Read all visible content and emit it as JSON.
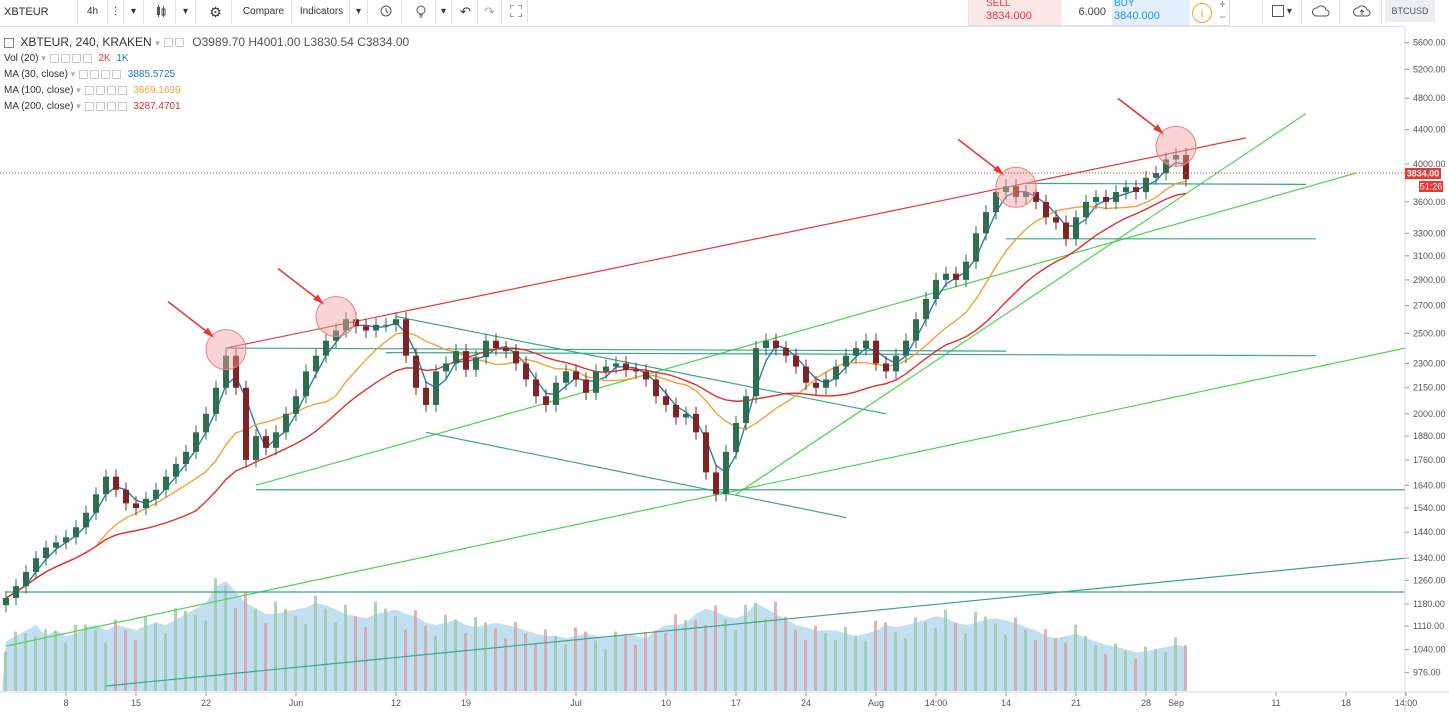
{
  "toolbar": {
    "symbol": "XBTEUR",
    "interval": "4h",
    "compare_label": "Compare",
    "indicators_label": "Indicators",
    "symbol_right": "BTCUSD"
  },
  "trade": {
    "sell_label": "SELL",
    "sell_price": "3834.000",
    "quantity": "6.000",
    "buy_label": "BUY",
    "buy_price": "3840.000"
  },
  "legend": {
    "main": "XBTEUR, 240, KRAKEN",
    "open": "O3989.70",
    "high": "H4001.00",
    "low": "L3830.54",
    "close": "C3834.00",
    "vol_label": "Vol (20)",
    "vol_2k": "2K",
    "vol_1k": "1K",
    "ma30_label": "MA (30, close)",
    "ma30_value": "3885.5725",
    "ma100_label": "MA (100, close)",
    "ma100_value": "3669.1699",
    "ma200_label": "MA (200, close)",
    "ma200_value": "3287.4701"
  },
  "price_tag": {
    "price": "3834.00",
    "countdown": "51:26"
  },
  "colors": {
    "ma30": "#2a7ab8",
    "ma100": "#f2a23a",
    "ma200": "#e0302c",
    "up": "#2f6d4f",
    "down": "#7d2424",
    "volume": "#8fc5e6",
    "resistance": "#e53935",
    "support_green": "#4ed44e",
    "horizontal_teal": "#3aa58a",
    "annotation_arrow": "#e53935"
  },
  "chart_data": {
    "type": "candlestick",
    "title": "XBTEUR, 240, KRAKEN",
    "ylim": [
      940,
      5800
    ],
    "y_scale": "log",
    "price_ticks": [
      5600,
      5200,
      4800,
      4400,
      4000,
      3600,
      3300,
      3100,
      2900,
      2700,
      2500,
      2300,
      2150,
      2000,
      1880,
      1760,
      1640,
      1540,
      1440,
      1340,
      1260,
      1180,
      1110,
      1040,
      976
    ],
    "time_ticks": [
      {
        "label": "8",
        "idx": 6
      },
      {
        "label": "15",
        "idx": 13
      },
      {
        "label": "22",
        "idx": 20
      },
      {
        "label": "Jun",
        "idx": 29
      },
      {
        "label": "12",
        "idx": 39
      },
      {
        "label": "19",
        "idx": 46
      },
      {
        "label": "Jul",
        "idx": 57
      },
      {
        "label": "10",
        "idx": 66
      },
      {
        "label": "17",
        "idx": 73
      },
      {
        "label": "24",
        "idx": 80
      },
      {
        "label": "Aug",
        "idx": 87
      },
      {
        "label": "14:00",
        "idx": 93
      },
      {
        "label": "14",
        "idx": 100
      },
      {
        "label": "21",
        "idx": 107
      },
      {
        "label": "28",
        "idx": 114
      },
      {
        "label": "Sep",
        "idx": 117
      },
      {
        "label": "11",
        "idx": 127
      },
      {
        "label": "18",
        "idx": 134
      },
      {
        "label": "14:00",
        "idx": 140
      }
    ],
    "closes": [
      1200,
      1240,
      1290,
      1340,
      1380,
      1400,
      1420,
      1460,
      1520,
      1600,
      1680,
      1620,
      1560,
      1540,
      1580,
      1620,
      1680,
      1740,
      1800,
      1900,
      2000,
      2150,
      2350,
      2150,
      1760,
      1880,
      1820,
      1900,
      2000,
      2100,
      2250,
      2350,
      2450,
      2520,
      2600,
      2550,
      2520,
      2560,
      2560,
      2600,
      2350,
      2150,
      2050,
      2250,
      2300,
      2380,
      2260,
      2340,
      2450,
      2400,
      2380,
      2300,
      2200,
      2100,
      2050,
      2180,
      2250,
      2200,
      2120,
      2250,
      2280,
      2300,
      2260,
      2250,
      2200,
      2100,
      2050,
      1980,
      2000,
      1900,
      1700,
      1600,
      1800,
      1950,
      2100,
      2400,
      2450,
      2400,
      2350,
      2280,
      2180,
      2150,
      2200,
      2280,
      2350,
      2400,
      2450,
      2300,
      2250,
      2350,
      2450,
      2600,
      2750,
      2900,
      2950,
      2900,
      3050,
      3300,
      3500,
      3700,
      3760,
      3650,
      3700,
      3600,
      3450,
      3400,
      3250,
      3450,
      3600,
      3650,
      3600,
      3700,
      3750,
      3700,
      3850,
      3900,
      4050,
      4100,
      3834
    ],
    "volumes": [
      0.45,
      0.5,
      0.55,
      0.6,
      0.5,
      0.55,
      0.5,
      0.52,
      0.58,
      0.6,
      0.55,
      0.6,
      0.58,
      0.55,
      0.6,
      0.62,
      0.6,
      0.65,
      0.7,
      0.75,
      0.8,
      0.95,
      1.0,
      0.9,
      0.8,
      0.75,
      0.7,
      0.7,
      0.72,
      0.74,
      0.76,
      0.8,
      0.78,
      0.74,
      0.7,
      0.68,
      0.66,
      0.7,
      0.72,
      0.74,
      0.7,
      0.68,
      0.62,
      0.6,
      0.62,
      0.65,
      0.6,
      0.58,
      0.6,
      0.62,
      0.6,
      0.58,
      0.55,
      0.52,
      0.5,
      0.5,
      0.48,
      0.5,
      0.52,
      0.5,
      0.48,
      0.5,
      0.52,
      0.5,
      0.48,
      0.55,
      0.6,
      0.6,
      0.62,
      0.7,
      0.75,
      0.72,
      0.68,
      0.66,
      0.7,
      0.8,
      0.75,
      0.7,
      0.65,
      0.6,
      0.58,
      0.55,
      0.55,
      0.55,
      0.52,
      0.5,
      0.52,
      0.55,
      0.6,
      0.58,
      0.6,
      0.62,
      0.65,
      0.68,
      0.66,
      0.62,
      0.6,
      0.62,
      0.65,
      0.66,
      0.64,
      0.62,
      0.58,
      0.55,
      0.5,
      0.48,
      0.5,
      0.52,
      0.48,
      0.45,
      0.42,
      0.4,
      0.38,
      0.35,
      0.36,
      0.38,
      0.4,
      0.42,
      0.4
    ],
    "lines": [
      {
        "name": "resistance",
        "color": "#e53935",
        "from": [
          22,
          2400
        ],
        "to": [
          124,
          4300
        ]
      },
      {
        "name": "support-a",
        "color": "#4ed44e",
        "from": [
          25,
          1640
        ],
        "to": [
          135,
          3900
        ]
      },
      {
        "name": "support-b",
        "color": "#4ed44e",
        "from": [
          0,
          1050
        ],
        "to": [
          144,
          2400
        ]
      },
      {
        "name": "support-c",
        "color": "#4ed44e",
        "from": [
          73,
          1600
        ],
        "to": [
          130,
          4600
        ]
      },
      {
        "name": "level-2380-a",
        "color": "#3aa58a",
        "from": [
          22,
          2400
        ],
        "to": [
          100,
          2380
        ]
      },
      {
        "name": "level-2350",
        "color": "#3aa58a",
        "from": [
          38,
          2370
        ],
        "to": [
          131,
          2350
        ]
      },
      {
        "name": "level-1620",
        "color": "#3aa58a",
        "from": [
          25,
          1620
        ],
        "to": [
          144,
          1620
        ]
      },
      {
        "name": "level-1220",
        "color": "#3aa58a",
        "from": [
          0,
          1220
        ],
        "to": [
          144,
          1220
        ]
      },
      {
        "name": "level-3800",
        "color": "#3aa58a",
        "from": [
          102,
          3790
        ],
        "to": [
          130,
          3780
        ]
      },
      {
        "name": "level-3250",
        "color": "#3aa58a",
        "from": [
          100,
          3250
        ],
        "to": [
          131,
          3250
        ]
      },
      {
        "name": "diag-channel-top",
        "color": "#3aa58a",
        "from": [
          39,
          2620
        ],
        "to": [
          88,
          2000
        ]
      },
      {
        "name": "diag-channel-bottom",
        "color": "#3aa58a",
        "from": [
          42,
          1900
        ],
        "to": [
          84,
          1500
        ]
      },
      {
        "name": "long-trend",
        "color": "#3aa58a",
        "from": [
          10,
          940
        ],
        "to": [
          144,
          1340
        ]
      }
    ],
    "markers": [
      {
        "idx": 22,
        "price": 2390
      },
      {
        "idx": 33,
        "price": 2620
      },
      {
        "idx": 101,
        "price": 3750
      },
      {
        "idx": 117,
        "price": 4200
      }
    ]
  }
}
